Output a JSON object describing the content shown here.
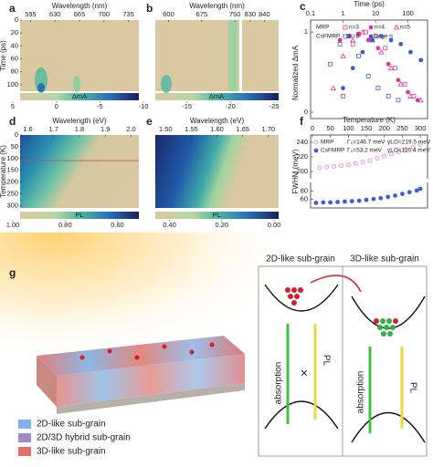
{
  "letters": {
    "a": "a",
    "b": "b",
    "c": "c",
    "d": "d",
    "e": "e",
    "f": "f",
    "g": "g"
  },
  "heatmaps": [
    {
      "panel": "a",
      "xlabel": "Wavelength (nm)",
      "xlim": [
        580,
        750
      ],
      "xticks": [
        595,
        630,
        665,
        700,
        735
      ],
      "ylabel": "Time (ps)",
      "ylim": [
        0,
        110
      ],
      "yticks": [
        0,
        20,
        40,
        60,
        80,
        100
      ]
    },
    {
      "panel": "b",
      "xlabel": "Wavelength (nm)",
      "xlim": [
        570,
        760
      ],
      "xticks": [
        600,
        675,
        750
      ],
      "xlim2": [
        825,
        850
      ],
      "xticks2": [
        830,
        840
      ]
    },
    {
      "panel": "d",
      "xlabel": "Wavelength (eV)",
      "xlim": [
        1.57,
        2.03
      ],
      "xticks": [
        1.6,
        1.7,
        1.8,
        1.9,
        {
          "value": 2,
          "label": "2.0"
        }
      ],
      "ylabel": "Temperature (K)",
      "ylim": [
        0,
        310
      ],
      "yticks": [
        0,
        50,
        100,
        150,
        200,
        250,
        300
      ]
    },
    {
      "panel": "e",
      "xlabel": "Wavelength (eV)",
      "xlim": [
        1.48,
        1.72
      ],
      "xticks": [
        {
          "value": 1.5,
          "label": "1.50"
        },
        1.55,
        {
          "value": 1.6,
          "label": "1.60"
        },
        1.65,
        {
          "value": 1.7,
          "label": "1.70"
        }
      ]
    }
  ],
  "colorbars": [
    {
      "label": "ΔmA",
      "lim": [
        5,
        -25
      ],
      "ticks": [
        5,
        0,
        -5,
        -10,
        -15,
        -20,
        -25
      ]
    },
    {
      "label": "PL",
      "lim": [
        1,
        0
      ],
      "ticks": [
        {
          "value": 1,
          "label": "1.00"
        },
        {
          "value": 0.8,
          "label": "0.80"
        },
        {
          "value": 0.6,
          "label": "0.60"
        },
        {
          "value": 0.4,
          "label": "0.40"
        },
        {
          "value": 0.2,
          "label": "0.20"
        },
        {
          "value": 0,
          "label": "0.00"
        }
      ]
    }
  ],
  "chart_data": [
    {
      "type": "scatter",
      "panel": "c",
      "xlabel": "Time (ps)",
      "xscale": "log",
      "xlim": [
        0.1,
        400
      ],
      "xticks": [
        0.1,
        1,
        10,
        100
      ],
      "ylabel": "Normalized ΔmA",
      "ylim": [
        -0.08,
        1.15
      ],
      "yticks": [
        0,
        1
      ],
      "groups": [
        "MRP",
        "CsFMRP"
      ],
      "series": [
        {
          "name": "n=3",
          "group": 0,
          "color": "#d63a9c",
          "marker": "square",
          "filled": false,
          "x": [
            1,
            2,
            3,
            5,
            10,
            20,
            40,
            80,
            150
          ],
          "values": [
            0.2,
            0.85,
            0.97,
            1.0,
            0.95,
            0.8,
            0.55,
            0.35,
            0.2
          ]
        },
        {
          "name": "n=4",
          "group": 0,
          "color": "#d63a9c",
          "marker": "circle",
          "filled": true,
          "x": [
            0.8,
            1.5,
            3,
            6,
            12,
            25,
            50,
            100,
            200
          ],
          "values": [
            0.9,
            0.95,
            0.98,
            0.9,
            0.8,
            0.6,
            0.4,
            0.25,
            0.15
          ]
        },
        {
          "name": "n=5",
          "group": 0,
          "color": "#d63a9c",
          "marker": "triangle",
          "filled": false,
          "x": [
            0.5,
            1,
            2,
            4,
            8,
            15,
            30,
            60,
            120,
            250
          ],
          "values": [
            0.3,
            0.7,
            0.9,
            1.0,
            0.9,
            0.75,
            0.55,
            0.35,
            0.2,
            0.15
          ]
        },
        {
          "name": "n=3",
          "group": 1,
          "color": "#3b5fd0",
          "marker": "square",
          "filled": false,
          "x": [
            0.4,
            0.8,
            1.5,
            3,
            6,
            12,
            25,
            50
          ],
          "values": [
            0.6,
            0.85,
            0.95,
            0.7,
            0.45,
            0.3,
            0.2,
            0.15
          ]
        },
        {
          "name": "large n",
          "group": 1,
          "color": "#3b5fd0",
          "marker": "circle",
          "filled": true,
          "x": [
            1,
            2,
            4,
            8,
            15,
            30,
            60,
            120,
            250
          ],
          "values": [
            0.3,
            0.55,
            0.75,
            0.9,
            0.95,
            0.9,
            0.85,
            0.75,
            0.65
          ]
        }
      ]
    },
    {
      "type": "scatter",
      "panel": "f",
      "xlabel": "Temperature (K)",
      "xlim": [
        -5,
        320
      ],
      "xticks": [
        0,
        50,
        100,
        150,
        200,
        250,
        300
      ],
      "ylabel": "FWHM (meV)",
      "ylim_upper": [
        190,
        250
      ],
      "yticks_upper": [
        200,
        220,
        240
      ],
      "ylim_lower": [
        40,
        100
      ],
      "yticks_lower": [
        60,
        80
      ],
      "series": [
        {
          "name": "MRP",
          "fit": [
            "Γ₀=146.7 meV",
            "γLO=219.5 meV"
          ],
          "color": "#e07ad0",
          "marker": "circle",
          "filled": false,
          "axis": "upper",
          "x": [
            20,
            40,
            60,
            80,
            100,
            120,
            140,
            160,
            180,
            200,
            220,
            240,
            260,
            280,
            300
          ],
          "values": [
            205,
            206,
            207,
            208,
            209,
            211,
            213,
            215,
            218,
            221,
            224,
            227,
            230,
            233,
            237
          ]
        },
        {
          "name": "CsFMRP",
          "fit": [
            "Γ₀=53.2 meV",
            "γLO=110.4 meV"
          ],
          "color": "#3b5fd0",
          "marker": "circle",
          "filled": true,
          "axis": "lower",
          "x": [
            10,
            30,
            50,
            70,
            90,
            110,
            130,
            150,
            170,
            190,
            210,
            230,
            250,
            270,
            290,
            300
          ],
          "values": [
            52,
            53,
            53,
            54,
            55,
            56,
            57,
            59,
            61,
            63,
            66,
            69,
            73,
            77,
            81,
            85
          ]
        }
      ]
    }
  ],
  "illustration": {
    "left_title": "2D-like sub-grain",
    "right_title": "3D-like sub-grain",
    "absorption_left": "absorption",
    "pl_left": "PL",
    "absorption_right": "absorption",
    "pl_right": "PL",
    "legend": [
      "2D-like sub-grain",
      "2D/3D hybrid sub-grain",
      "3D-like sub-grain"
    ]
  }
}
